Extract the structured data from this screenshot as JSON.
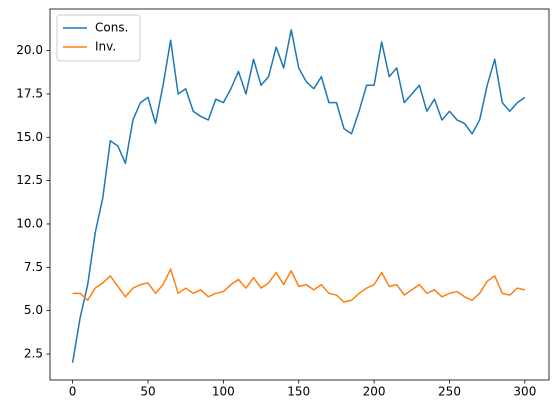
{
  "chart_data": {
    "type": "line",
    "x": [
      0,
      5,
      10,
      15,
      20,
      25,
      30,
      35,
      40,
      45,
      50,
      55,
      60,
      65,
      70,
      75,
      80,
      85,
      90,
      95,
      100,
      105,
      110,
      115,
      120,
      125,
      130,
      135,
      140,
      145,
      150,
      155,
      160,
      165,
      170,
      175,
      180,
      185,
      190,
      195,
      200,
      205,
      210,
      215,
      220,
      225,
      230,
      235,
      240,
      245,
      250,
      255,
      260,
      265,
      270,
      275,
      280,
      285,
      290,
      295,
      300
    ],
    "series": [
      {
        "name": "Cons.",
        "color": "#1f77b4",
        "values": [
          2.0,
          4.6,
          6.5,
          9.5,
          11.5,
          14.8,
          14.5,
          13.5,
          16.0,
          17.0,
          17.3,
          15.8,
          18.0,
          20.6,
          17.5,
          17.8,
          16.5,
          16.2,
          16.0,
          17.2,
          17.0,
          17.8,
          18.8,
          17.5,
          19.5,
          18.0,
          18.5,
          20.2,
          19.0,
          21.2,
          19.0,
          18.2,
          17.8,
          18.5,
          17.0,
          17.0,
          15.5,
          15.2,
          16.5,
          18.0,
          18.0,
          20.5,
          18.5,
          19.0,
          17.0,
          17.5,
          18.0,
          16.5,
          17.2,
          16.0,
          16.5,
          16.0,
          15.8,
          15.2,
          16.0,
          18.0,
          19.5,
          17.0,
          16.5,
          17.0,
          17.3
        ]
      },
      {
        "name": "Inv.",
        "color": "#ff7f0e",
        "values": [
          6.0,
          6.0,
          5.6,
          6.3,
          6.6,
          7.0,
          6.4,
          5.8,
          6.3,
          6.5,
          6.6,
          6.0,
          6.5,
          7.4,
          6.0,
          6.3,
          6.0,
          6.2,
          5.8,
          6.0,
          6.1,
          6.5,
          6.8,
          6.3,
          6.9,
          6.3,
          6.6,
          7.2,
          6.5,
          7.3,
          6.4,
          6.5,
          6.2,
          6.5,
          6.0,
          5.9,
          5.5,
          5.6,
          6.0,
          6.3,
          6.5,
          7.2,
          6.4,
          6.5,
          5.9,
          6.2,
          6.5,
          6.0,
          6.2,
          5.8,
          6.0,
          6.1,
          5.8,
          5.6,
          6.0,
          6.7,
          7.0,
          6.0,
          5.9,
          6.3,
          6.2
        ]
      }
    ],
    "xlim": [
      -15,
      316
    ],
    "xticks": [
      0,
      50,
      100,
      150,
      200,
      250,
      300
    ],
    "ylim": [
      1.0,
      22.4
    ],
    "yticks": [
      2.5,
      {
        "value": 5,
        "label": "5.0"
      },
      7.5,
      {
        "value": 10,
        "label": "10.0"
      },
      12.5,
      {
        "value": 15,
        "label": "15.0"
      },
      17.5,
      {
        "value": 20,
        "label": "20.0"
      }
    ],
    "grid": false,
    "legend": "upper left"
  }
}
